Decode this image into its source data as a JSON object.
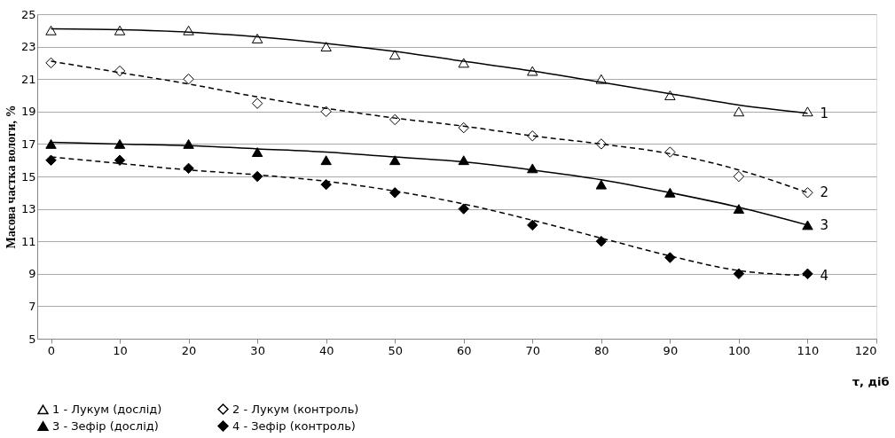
{
  "chart_data": {
    "type": "scatter",
    "xlabel": "τ, діб",
    "ylabel": "Масова частка вологи, %",
    "xlim": [
      -2,
      120
    ],
    "xticks": [
      0,
      10,
      20,
      30,
      40,
      50,
      60,
      70,
      80,
      90,
      100,
      110,
      120
    ],
    "ylim": [
      5,
      25
    ],
    "yticks": [
      5,
      7,
      9,
      11,
      13,
      15,
      17,
      19,
      21,
      23,
      25
    ],
    "grid": "y",
    "legend": "bottom",
    "series": [
      {
        "name": "1 - Лукум (дослід)",
        "type": "scatter",
        "marker": "triangle",
        "color": "#ffffff",
        "x": [
          0,
          10,
          20,
          30,
          40,
          50,
          60,
          70,
          80,
          90,
          100,
          110
        ],
        "values": [
          24,
          24,
          24,
          23.5,
          23,
          22.5,
          22,
          21.5,
          21,
          20,
          19,
          19
        ]
      },
      {
        "name": "2 - Лукум (контроль)",
        "type": "scatter",
        "marker": "diamond",
        "color": "#ffffff",
        "x": [
          0,
          10,
          20,
          30,
          40,
          50,
          60,
          70,
          80,
          90,
          100,
          110
        ],
        "values": [
          22,
          21.5,
          21,
          19.5,
          19,
          18.5,
          18,
          17.5,
          17,
          16.5,
          15,
          14
        ]
      },
      {
        "name": "3 - Зефір (дослід)",
        "type": "scatter",
        "marker": "triangle",
        "color": "#000000",
        "x": [
          0,
          10,
          20,
          30,
          40,
          50,
          60,
          70,
          80,
          90,
          100,
          110
        ],
        "values": [
          17,
          17,
          17,
          16.5,
          16,
          16,
          16,
          15.5,
          14.5,
          14,
          13,
          12
        ]
      },
      {
        "name": "4 - Зефір (контроль)",
        "type": "scatter",
        "marker": "diamond",
        "color": "#000000",
        "x": [
          0,
          10,
          20,
          30,
          40,
          50,
          60,
          70,
          80,
          90,
          100,
          110
        ],
        "values": [
          16,
          16,
          15.5,
          15,
          14.5,
          14,
          13,
          12,
          11,
          10,
          9,
          9
        ]
      },
      {
        "type": "line",
        "line_style": "solid",
        "color": "#000000",
        "x": [
          0,
          10,
          20,
          30,
          40,
          50,
          60,
          70,
          80,
          90,
          100,
          110
        ],
        "values": [
          24.1,
          24.05,
          23.9,
          23.6,
          23.2,
          22.7,
          22.1,
          21.5,
          20.8,
          20.1,
          19.4,
          18.9
        ]
      },
      {
        "type": "line",
        "line_style": "dashed",
        "color": "#000000",
        "x": [
          0,
          10,
          20,
          30,
          40,
          50,
          60,
          70,
          80,
          90,
          100,
          110
        ],
        "values": [
          22.1,
          21.4,
          20.7,
          19.9,
          19.2,
          18.6,
          18.1,
          17.5,
          17.0,
          16.4,
          15.4,
          14.0
        ]
      },
      {
        "type": "line",
        "line_style": "solid",
        "color": "#000000",
        "x": [
          0,
          10,
          20,
          30,
          40,
          50,
          60,
          70,
          80,
          90,
          100,
          110
        ],
        "values": [
          17.1,
          17.0,
          16.9,
          16.7,
          16.5,
          16.2,
          15.9,
          15.4,
          14.8,
          14.0,
          13.1,
          12.0
        ]
      },
      {
        "type": "line",
        "line_style": "dashed",
        "color": "#000000",
        "x": [
          0,
          10,
          20,
          30,
          40,
          50,
          60,
          70,
          80,
          90,
          100,
          110
        ],
        "values": [
          16.2,
          15.8,
          15.4,
          15.1,
          14.7,
          14.1,
          13.3,
          12.3,
          11.2,
          10.1,
          9.2,
          8.9
        ]
      }
    ],
    "annotations": [
      "1",
      "2",
      "3",
      "4"
    ]
  }
}
